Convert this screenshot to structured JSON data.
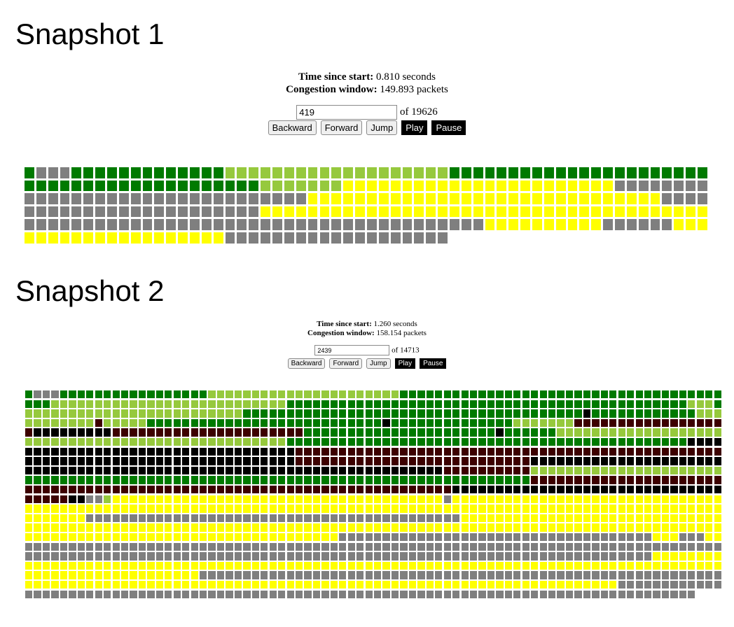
{
  "snapshots": [
    {
      "heading": "Snapshot 1",
      "time_label": "Time since start:",
      "time_value": "0.810 seconds",
      "cwnd_label": "Congestion window:",
      "cwnd_value": "149.893 packets",
      "position_value": "419",
      "of_text": "of 19626",
      "buttons": {
        "backward": "Backward",
        "forward": "Forward",
        "jump": "Jump",
        "play": "Play",
        "pause": "Pause"
      },
      "columns": 58,
      "rows": [
        "DSSSDDDDDDDDDDDDDLLLLLLLLLLLLLLLLLLLDDDDDDDDDDDDDDDDDDDDDD",
        "DDDDDDDDDDDDDDDDDDDDLLLLLLLYYYYYYYYYYYYYYYYYYYYYYYSSSSSSSSSSSSSSSS",
        "SSSSSSSSSSSSSSSSSSSSSSSSYYYYYYYYYYYYYYYYYYYYYYYYYYYYYYSSSSSSSSSSSSSSS",
        "SSSSSSSSSSSSSSSSSSSSYYYYYYYYYYYYYYYYYYYYYYYYYYYYYYYYYYYYYYYYYYYYYYYYYSSSSSSSS",
        "SSSSSSSSSSSSSSSSSSSSSSSSSSSSSSSSSSSSSSSYYYYYYYYYYSSSSSSYYYY",
        "YYYYYYYYYYYYYYYYYSSSSSSSSSSSSSSSSSSS"
      ]
    },
    {
      "heading": "Snapshot 2",
      "time_label": "Time since start:",
      "time_value": "1.260 seconds",
      "cwnd_label": "Congestion window:",
      "cwnd_value": "158.154 packets",
      "position_value": "2439",
      "of_text": "of 14713",
      "buttons": {
        "backward": "Backward",
        "forward": "Forward",
        "jump": "Jump",
        "play": "Play",
        "pause": "Pause"
      },
      "columns": 80,
      "rows": [
        "DSSSDDDDDDDDDDDDDDDDDLLLLLLLLLLLLLLLLLLLLLLDDDDDDDDDDDDDDDDDDDDDDDDDDDDDDDDDDDDD",
        "DDDLLLLLLLLLLLLLLLLLLLLLLLLLLLDDDDDDDDDDDDDDDDDDDDDDDDDDDDDDDDDDDDDDDDDDDDDDLLLD",
        "LLLLLLLLLLLLLLLLLLLLLLLLLDDDDDDDDDDDDDDDDDDDDDDDDDDDDDDDDDDDDDDDKDDDDDDDDDDDDLLL",
        "LLLLLLLLMLLLLLDDDDDDDDDDDDDDDDDDDDDDDDDDDKDDDDDDDDDDDDDDLLLLLLLMMMMMMMMMMMMMMMMM",
        "MKKKKKKKKKMMMMMMMMMMMMMMMMMMMMMMDDDDDDDDDDDDDDDDDDDDDDKDDDDDDLLLLLLLLLLLLLLLLLLL",
        "LLLLLLLLLLLLLLLLLLLLLLLLLLLLLLDDDDDDDDDDDDDDDDDDDDDDDDDDDDDDDDDDDDDDDDDDDDDDKKKK",
        "KKKKKKKKKKKKKKKKKKKKKKKKKKKKKKKMMMMMMMMMMMMMMMMMMMMMMMMMMMMMMMMMMMMMMMMMMMMMMMMM",
        "KKKKKKKKKKKKKKKKKKKKKKKKKKKKKKKMMMMMMMMMMMMMMMMMMMMMMMMMMMKKKKKKKKKKKKKKKKKKKKKK",
        "KKKKKKKKKKKKKKKKKKKKKKKKKKKKKKKKKKKKKKKKKKKKKKKKMMMMMMMMMMLLLLLLLLLLLLLLLLLLLLLL",
        "DDDDDDDDDDDDDDDDDDDDDDDDDDDDDDDDDDDDDDDDDDDDDDDDDDDDDDDDDDMMMMMMMMMMMMMMMMMMMMMM",
        "MMMMMMMMMMMMMMMMMMMMMMMMMMMMMMMMMMMMMMMMMMMMMMMMMKKKKKKKKKKKKKKKKKKKKKKKKKKKKKKK",
        "MMMMMKKSSLYYYYYYYYYYYYYYYYYYYYYYYYYYYYYYYYYYYYYYSYYYYYYYYYYYYYYYYYYYYYYYYYYYYYYY",
        "YYYYYYYYYYYYYYYYYYYYYYYYYYYYYYYYYYYYYYYYYYYYYYYYYYYYYYYYYYYYYYYYYYYYYYYYYYYYYYYY",
        "YYYYYYYSSSSSSSSSSSSSSSSSSSSSSSSSSSSSSSSSSSSSSSSSSSYYYYYYYYYYYYYYYYYYYYYYYYYYYYYY",
        "YYYYYYYYYYYYYYYYYYYYYYYYYYYYYYYYYYYYYYYYYYYYYYYYYYYYYYYYYYYYYYYYYYYYYYYYYYYYYYYY",
        "YYYYYYYYYYYYYYYYYYYYYYYYYYYYYYYYYYYYSSSSSSSSSSSSSSSSSSSSSSSSSSSSSSSSSSSSYYYSSSYY",
        "SSSSSSSSSSSSSSSSSSSSSSSSSSSSSSSSSSSSSSSSSSSSSSSSSSSSSSSSSSSSSSSSSSSSSSSSSSSSSSSS",
        "SSSSSSSSSSSSSSSSSSSSSSSSSSSSSSSSSSSSSSSSSSSSSSSSSSSSSSSSSSSSSSSSSSSSSSSSYYYYYYYY",
        "YYYYYYYYYYYYYYYYYYYYYYYYYYYYYYYYYYYYYYYYYYYYYYYYYYYYYYYYYYYYYYYYYYYYYYYYYYYYYYYY",
        "YYYYYYYYYYYYYYYYYYYYSSSSSSSSSSSSSSSSSSSSSSSSSSSSSSSSSSSSSSSSSSSSSSSSSSSSSSSSSSSS",
        "YYYYYYYYYYYYYYYYYYYYYYYYYYYYYYYYYYYYYYYYYYYYYYYYYYYYYYYYYYYYYYYYYYYYSSSSSSSSSSSS",
        "SSSSSSSSSSSSSSSSSSSSSSSSSSSSSSSSSSSSSSSSSSSSSSSSSSSSSSSSSSSSSSSSSSSSSSSSSSSSS"
      ]
    }
  ],
  "colors": {
    "D": "#007a00",
    "L": "#96c93d",
    "S": "#7f7f7f",
    "Y": "#ffff00",
    "K": "#000000",
    "M": "#3d0000"
  }
}
